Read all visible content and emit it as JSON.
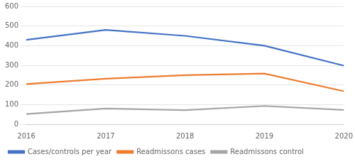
{
  "chart_data": {
    "type": "line",
    "categories": [
      "2016",
      "2017",
      "2018",
      "2019",
      "2020"
    ],
    "series": [
      {
        "name": "Cases/controls per year",
        "color": "#4472C4",
        "values": [
          430,
          480,
          450,
          400,
          298
        ]
      },
      {
        "name": "Readmissons cases",
        "color": "#ED7D31",
        "values": [
          205,
          232,
          250,
          258,
          168
        ]
      },
      {
        "name": "Readmissons control",
        "color": "#A5A5A5",
        "values": [
          52,
          80,
          72,
          93,
          73
        ]
      }
    ],
    "ylim": [
      0,
      600
    ],
    "yticks": [
      0,
      100,
      200,
      300,
      400,
      500,
      600
    ],
    "grid": true,
    "legend": "bottom",
    "marker": "none"
  }
}
